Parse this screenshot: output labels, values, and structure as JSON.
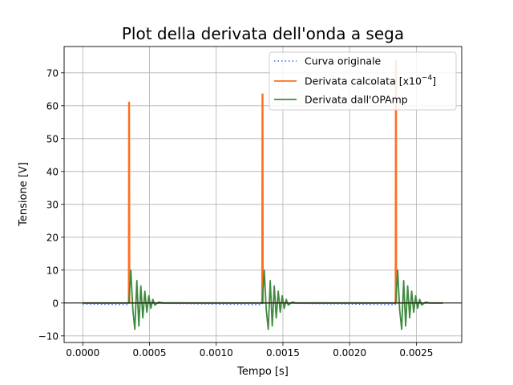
{
  "chart_data": {
    "type": "line",
    "title": "Plot della derivata dell'onda a sega",
    "xlabel": "Tempo [s]",
    "ylabel": "Tensione [V]",
    "xlim": [
      -0.00014,
      0.00284
    ],
    "ylim": [
      -12,
      78
    ],
    "grid": true,
    "legend_position": "top-right",
    "x_ticks": [
      0.0,
      0.0005,
      0.001,
      0.0015,
      0.002,
      0.0025
    ],
    "x_tick_labels": [
      "0.0000",
      "0.0005",
      "0.0010",
      "0.0015",
      "0.0020",
      "0.0025"
    ],
    "y_ticks": [
      -10,
      0,
      10,
      20,
      30,
      40,
      50,
      60,
      70
    ],
    "y_tick_labels": [
      "−10",
      "0",
      "10",
      "20",
      "30",
      "40",
      "50",
      "60",
      "70"
    ],
    "horizontal_line_y": 0,
    "series": [
      {
        "name": "Curva originale",
        "color": "#4169e1",
        "style": "dotted",
        "x": [
          0.0,
          0.00034,
          0.00035,
          0.00134,
          0.00135,
          0.00234,
          0.00235,
          0.0027
        ],
        "y": [
          -0.3,
          -0.5,
          0.0,
          -0.5,
          0.0,
          -0.5,
          0.0,
          0.0
        ]
      },
      {
        "name": "Derivata calcolata [x10^-4]",
        "legend_main": "Derivata calcolata [x10",
        "legend_sup": "−4",
        "legend_tail": "]",
        "color": "#ff6f1f",
        "style": "solid",
        "x": [
          0.0,
          0.000343,
          0.000345,
          0.000349,
          0.000351,
          0.001343,
          0.001345,
          0.001349,
          0.001351,
          0.002343,
          0.002345,
          0.002349,
          0.002351,
          0.0027
        ],
        "y": [
          0.0,
          0.0,
          61.0,
          61.0,
          0.0,
          0.0,
          63.5,
          63.5,
          0.0,
          0.0,
          73.8,
          73.8,
          0.0,
          0.0
        ]
      },
      {
        "name": "Derivata dall'OPAmp",
        "color": "#3f8a3f",
        "style": "solid",
        "x": [
          0.0,
          0.000345,
          0.00036,
          0.000375,
          0.00039,
          0.000405,
          0.00042,
          0.000435,
          0.00045,
          0.000465,
          0.00048,
          0.000495,
          0.00051,
          0.000525,
          0.00054,
          0.00057,
          0.0006,
          0.0013,
          0.001345,
          0.00136,
          0.001375,
          0.00139,
          0.001405,
          0.00142,
          0.001435,
          0.00145,
          0.001465,
          0.00148,
          0.001495,
          0.00151,
          0.001525,
          0.00154,
          0.00157,
          0.0016,
          0.0023,
          0.002345,
          0.00236,
          0.002375,
          0.00239,
          0.002405,
          0.00242,
          0.002435,
          0.00245,
          0.002465,
          0.00248,
          0.002495,
          0.00251,
          0.002525,
          0.00254,
          0.00257,
          0.0026,
          0.0027
        ],
        "y": [
          0.0,
          0.0,
          10.0,
          -2.0,
          -8.0,
          6.8,
          -7.0,
          5.2,
          -4.5,
          3.6,
          -2.8,
          2.2,
          -1.6,
          1.1,
          -0.6,
          0.3,
          0.0,
          0.0,
          0.0,
          10.0,
          -2.0,
          -8.0,
          6.8,
          -7.0,
          5.2,
          -4.5,
          3.6,
          -2.8,
          2.2,
          -1.6,
          1.1,
          -0.6,
          0.3,
          0.0,
          0.0,
          0.0,
          10.0,
          -2.0,
          -8.0,
          6.8,
          -7.0,
          5.2,
          -4.5,
          3.6,
          -2.8,
          2.2,
          -1.6,
          1.1,
          -0.6,
          0.3,
          0.0,
          0.0
        ]
      }
    ]
  }
}
